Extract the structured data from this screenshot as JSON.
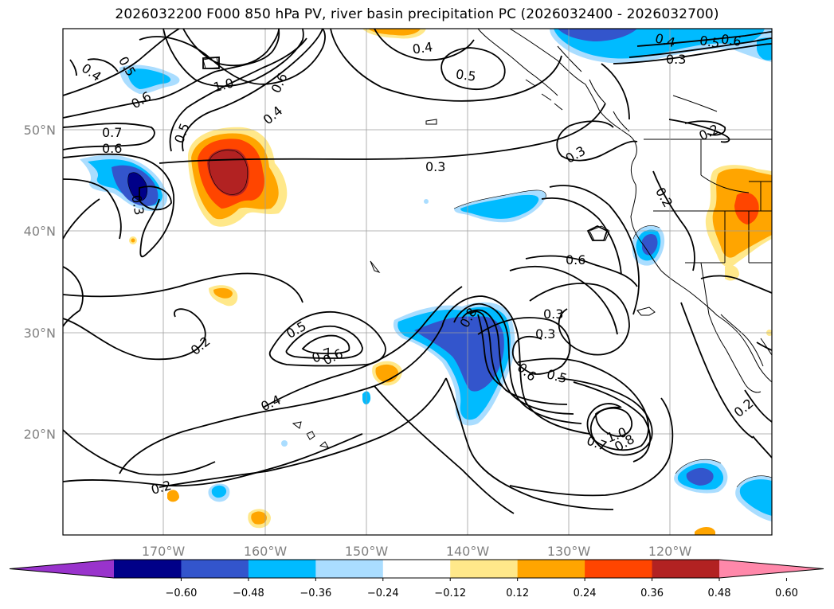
{
  "title": "2026032200 F000 850 hPa PV, river basin precipitation PC (2026032400 - 2026032700)",
  "map": {
    "lon_ticks": [
      "170°W",
      "160°W",
      "150°W",
      "140°W",
      "130°W",
      "120°W"
    ],
    "lat_ticks": [
      "50°N",
      "40°N",
      "30°N",
      "20°N"
    ]
  },
  "contour_labels": [
    "0.4",
    "0.5",
    "0.6",
    "1.0",
    "0.6",
    "0.4",
    "0.5",
    "0.7",
    "0.6",
    "0.3",
    "0.3",
    "0.4",
    "0.5",
    "0.3",
    "0.4",
    "0.5",
    "0.6",
    "0.2",
    "0.2",
    "0.6",
    "0.3",
    "0.8",
    "0.5",
    "0.7",
    "0.6",
    "0.4",
    "0.3",
    "0.6",
    "0.5",
    "1.0",
    "0.7",
    "0.8",
    "0.2",
    "0.2",
    "0.2",
    "0.3"
  ],
  "colorbar": {
    "colors": [
      "#9933cc",
      "#000088",
      "#3355cc",
      "#00bbff",
      "#aaddff",
      "#ffffff",
      "#ffe88a",
      "#ffa500",
      "#ff4500",
      "#b22222",
      "#ff88aa"
    ],
    "labels": [
      "−0.60",
      "−0.48",
      "−0.36",
      "−0.24",
      "−0.12",
      "0.12",
      "0.24",
      "0.36",
      "0.48",
      "0.60"
    ]
  }
}
